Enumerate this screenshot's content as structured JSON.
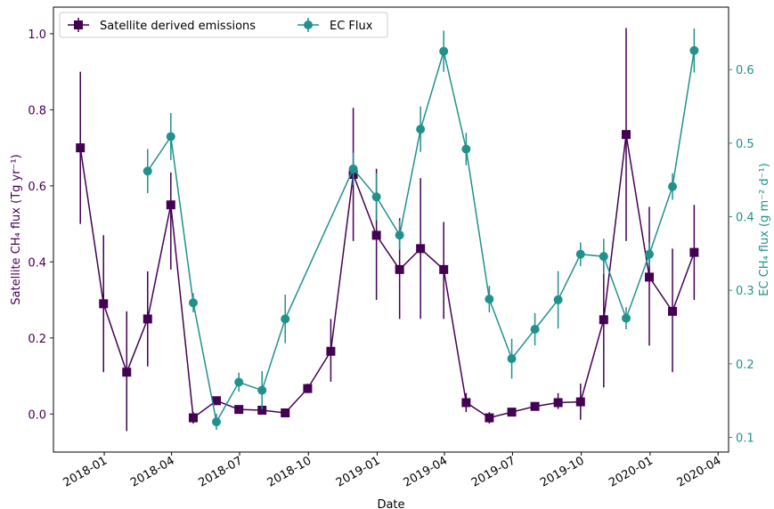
{
  "chart_data": {
    "type": "line",
    "xlabel": "Date",
    "ylabel_left": "Satellite CH₄ flux (Tg yr⁻¹)",
    "ylabel_right": "EC CH₄ flux (g m⁻² d⁻¹)",
    "x_ticks": [
      "2018-01",
      "2018-04",
      "2018-07",
      "2018-10",
      "2019-01",
      "2019-04",
      "2019-07",
      "2019-10",
      "2020-01",
      "2020-04"
    ],
    "x_range": [
      "2017-10-25",
      "2020-04-15"
    ],
    "y_left_ticks": [
      "0.0",
      "0.2",
      "0.4",
      "0.6",
      "0.8",
      "1.0"
    ],
    "y_left_range": [
      -0.1,
      1.07
    ],
    "y_right_ticks": [
      "0.1",
      "0.2",
      "0.3",
      "0.4",
      "0.5",
      "0.6"
    ],
    "y_right_range": [
      0.08,
      0.685
    ],
    "legend_position": "top-left",
    "colors": {
      "satellite": "#440154",
      "ec": "#21918c"
    },
    "series": [
      {
        "name": "Satellite derived emissions",
        "axis": "left",
        "marker": "square",
        "x": [
          "2017-11-30",
          "2017-12-31",
          "2018-01-31",
          "2018-02-28",
          "2018-03-31",
          "2018-04-30",
          "2018-05-31",
          "2018-06-30",
          "2018-07-31",
          "2018-08-31",
          "2018-09-30",
          "2018-10-31",
          "2018-11-30",
          "2018-12-31",
          "2019-01-31",
          "2019-02-28",
          "2019-03-31",
          "2019-04-30",
          "2019-05-31",
          "2019-06-30",
          "2019-07-31",
          "2019-08-31",
          "2019-09-30",
          "2019-10-31",
          "2019-11-30",
          "2019-12-31",
          "2020-01-31",
          "2020-02-29"
        ],
        "values": [
          0.7,
          0.29,
          0.11,
          0.25,
          0.55,
          -0.01,
          0.035,
          0.012,
          0.01,
          0.003,
          0.067,
          0.165,
          0.63,
          0.47,
          0.38,
          0.435,
          0.38,
          0.03,
          -0.01,
          0.005,
          0.02,
          0.03,
          0.032,
          0.248,
          0.735,
          0.36,
          0.27,
          0.425
        ],
        "err_low": [
          0.5,
          0.11,
          -0.045,
          0.125,
          0.38,
          -0.025,
          0.025,
          0.005,
          0.003,
          -0.005,
          0.055,
          0.085,
          0.455,
          0.3,
          0.25,
          0.25,
          0.25,
          0.005,
          -0.025,
          -0.005,
          0.01,
          0.013,
          -0.015,
          0.07,
          0.455,
          0.18,
          0.11,
          0.3
        ],
        "err_high": [
          0.9,
          0.47,
          0.27,
          0.375,
          0.635,
          0.005,
          0.045,
          0.02,
          0.018,
          0.01,
          0.08,
          0.25,
          0.805,
          0.645,
          0.515,
          0.62,
          0.505,
          0.055,
          0.005,
          0.015,
          0.03,
          0.055,
          0.08,
          0.425,
          1.015,
          0.545,
          0.435,
          0.55
        ]
      },
      {
        "name": "EC Flux",
        "axis": "right",
        "marker": "circle",
        "x": [
          "2018-02-28",
          "2018-03-31",
          "2018-04-30",
          "2018-05-31",
          "2018-06-30",
          "2018-07-31",
          "2018-08-31",
          "2018-11-30",
          "2018-12-31",
          "2019-01-31",
          "2019-02-28",
          "2019-03-31",
          "2019-04-30",
          "2019-05-31",
          "2019-06-30",
          "2019-07-31",
          "2019-08-31",
          "2019-09-30",
          "2019-10-31",
          "2019-11-30",
          "2019-12-31",
          "2020-01-31",
          "2020-02-29"
        ],
        "values": [
          0.462,
          0.509,
          0.283,
          0.121,
          0.175,
          0.164,
          0.261,
          0.465,
          0.427,
          0.375,
          0.519,
          0.625,
          0.492,
          0.288,
          0.207,
          0.247,
          0.287,
          0.349,
          0.346,
          0.262,
          0.349,
          0.441,
          0.626
        ],
        "err_low": [
          0.432,
          0.477,
          0.27,
          0.11,
          0.162,
          0.138,
          0.228,
          0.443,
          0.395,
          0.355,
          0.488,
          0.597,
          0.47,
          0.27,
          0.18,
          0.225,
          0.248,
          0.333,
          0.322,
          0.247,
          0.333,
          0.423,
          0.596
        ],
        "err_high": [
          0.492,
          0.541,
          0.296,
          0.132,
          0.188,
          0.19,
          0.294,
          0.487,
          0.459,
          0.395,
          0.55,
          0.653,
          0.514,
          0.306,
          0.234,
          0.269,
          0.326,
          0.365,
          0.37,
          0.277,
          0.365,
          0.459,
          0.656
        ]
      }
    ]
  }
}
